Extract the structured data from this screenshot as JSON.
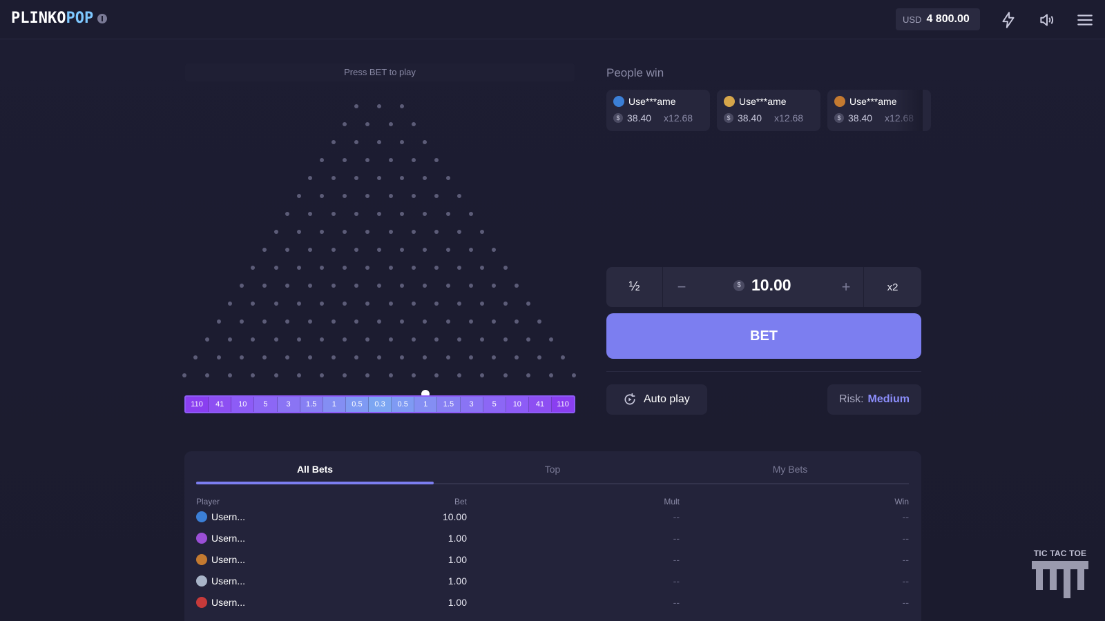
{
  "header": {
    "logo_part1": "PLINKO",
    "logo_part2": "POP",
    "balance_currency": "USD",
    "balance_amount": "4 800.00",
    "icons": [
      "info-icon",
      "lightning-icon",
      "sound-icon",
      "menu-icon"
    ]
  },
  "board": {
    "press_label": "Press BET to play",
    "peg_rows": 16,
    "multipliers": [
      "110",
      "41",
      "10",
      "5",
      "3",
      "1.5",
      "1",
      "0.5",
      "0.3",
      "0.5",
      "1",
      "1.5",
      "3",
      "5",
      "10",
      "41",
      "110"
    ],
    "slot_colors": [
      "#8a3ff0",
      "#8d4ff2",
      "#8d5cf6",
      "#8c67f5",
      "#8a74f4",
      "#8780f3",
      "#848ef3",
      "#7f9af3",
      "#7ca6f2",
      "#7f9af3",
      "#848ef3",
      "#8780f3",
      "#8a74f4",
      "#8c67f5",
      "#8d5cf6",
      "#8d4ff2",
      "#8a3ff0"
    ]
  },
  "people_win": {
    "title": "People win",
    "cards": [
      {
        "name": "Use***ame",
        "amount": "38.40",
        "mult": "x12.68",
        "avatar_color": "#3b7fd6"
      },
      {
        "name": "Use***ame",
        "amount": "38.40",
        "mult": "x12.68",
        "avatar_color": "#d6a64a"
      },
      {
        "name": "Use***ame",
        "amount": "38.40",
        "mult": "x12.68",
        "avatar_color": "#c47a30"
      }
    ],
    "currency_symbol": "$"
  },
  "bet": {
    "half_label": "½",
    "minus_label": "−",
    "currency_symbol": "$",
    "amount": "10.00",
    "plus_label": "+",
    "double_label": "x2",
    "bet_label": "BET",
    "autoplay_label": "Auto play",
    "risk_label": "Risk:",
    "risk_value": "Medium"
  },
  "bets_table": {
    "tabs": [
      "All Bets",
      "Top",
      "My Bets"
    ],
    "active_tab": "All Bets",
    "columns": [
      "Player",
      "Bet",
      "Mult",
      "Win"
    ],
    "rows": [
      {
        "player": "Usern...",
        "bet": "10.00",
        "mult": "--",
        "win": "--",
        "avatar_color": "#3b7fd6"
      },
      {
        "player": "Usern...",
        "bet": "1.00",
        "mult": "--",
        "win": "--",
        "avatar_color": "#9b4fd6"
      },
      {
        "player": "Usern...",
        "bet": "1.00",
        "mult": "--",
        "win": "--",
        "avatar_color": "#c47a30"
      },
      {
        "player": "Usern...",
        "bet": "1.00",
        "mult": "--",
        "win": "--",
        "avatar_color": "#a8b4c8"
      },
      {
        "player": "Usern...",
        "bet": "1.00",
        "mult": "--",
        "win": "--",
        "avatar_color": "#c63a3a"
      }
    ]
  },
  "promo": {
    "title": "TIC TAC TOE"
  },
  "colors": {
    "accent": "#7c7ef0",
    "background": "#1b1b2e",
    "panel": "#23233a"
  }
}
